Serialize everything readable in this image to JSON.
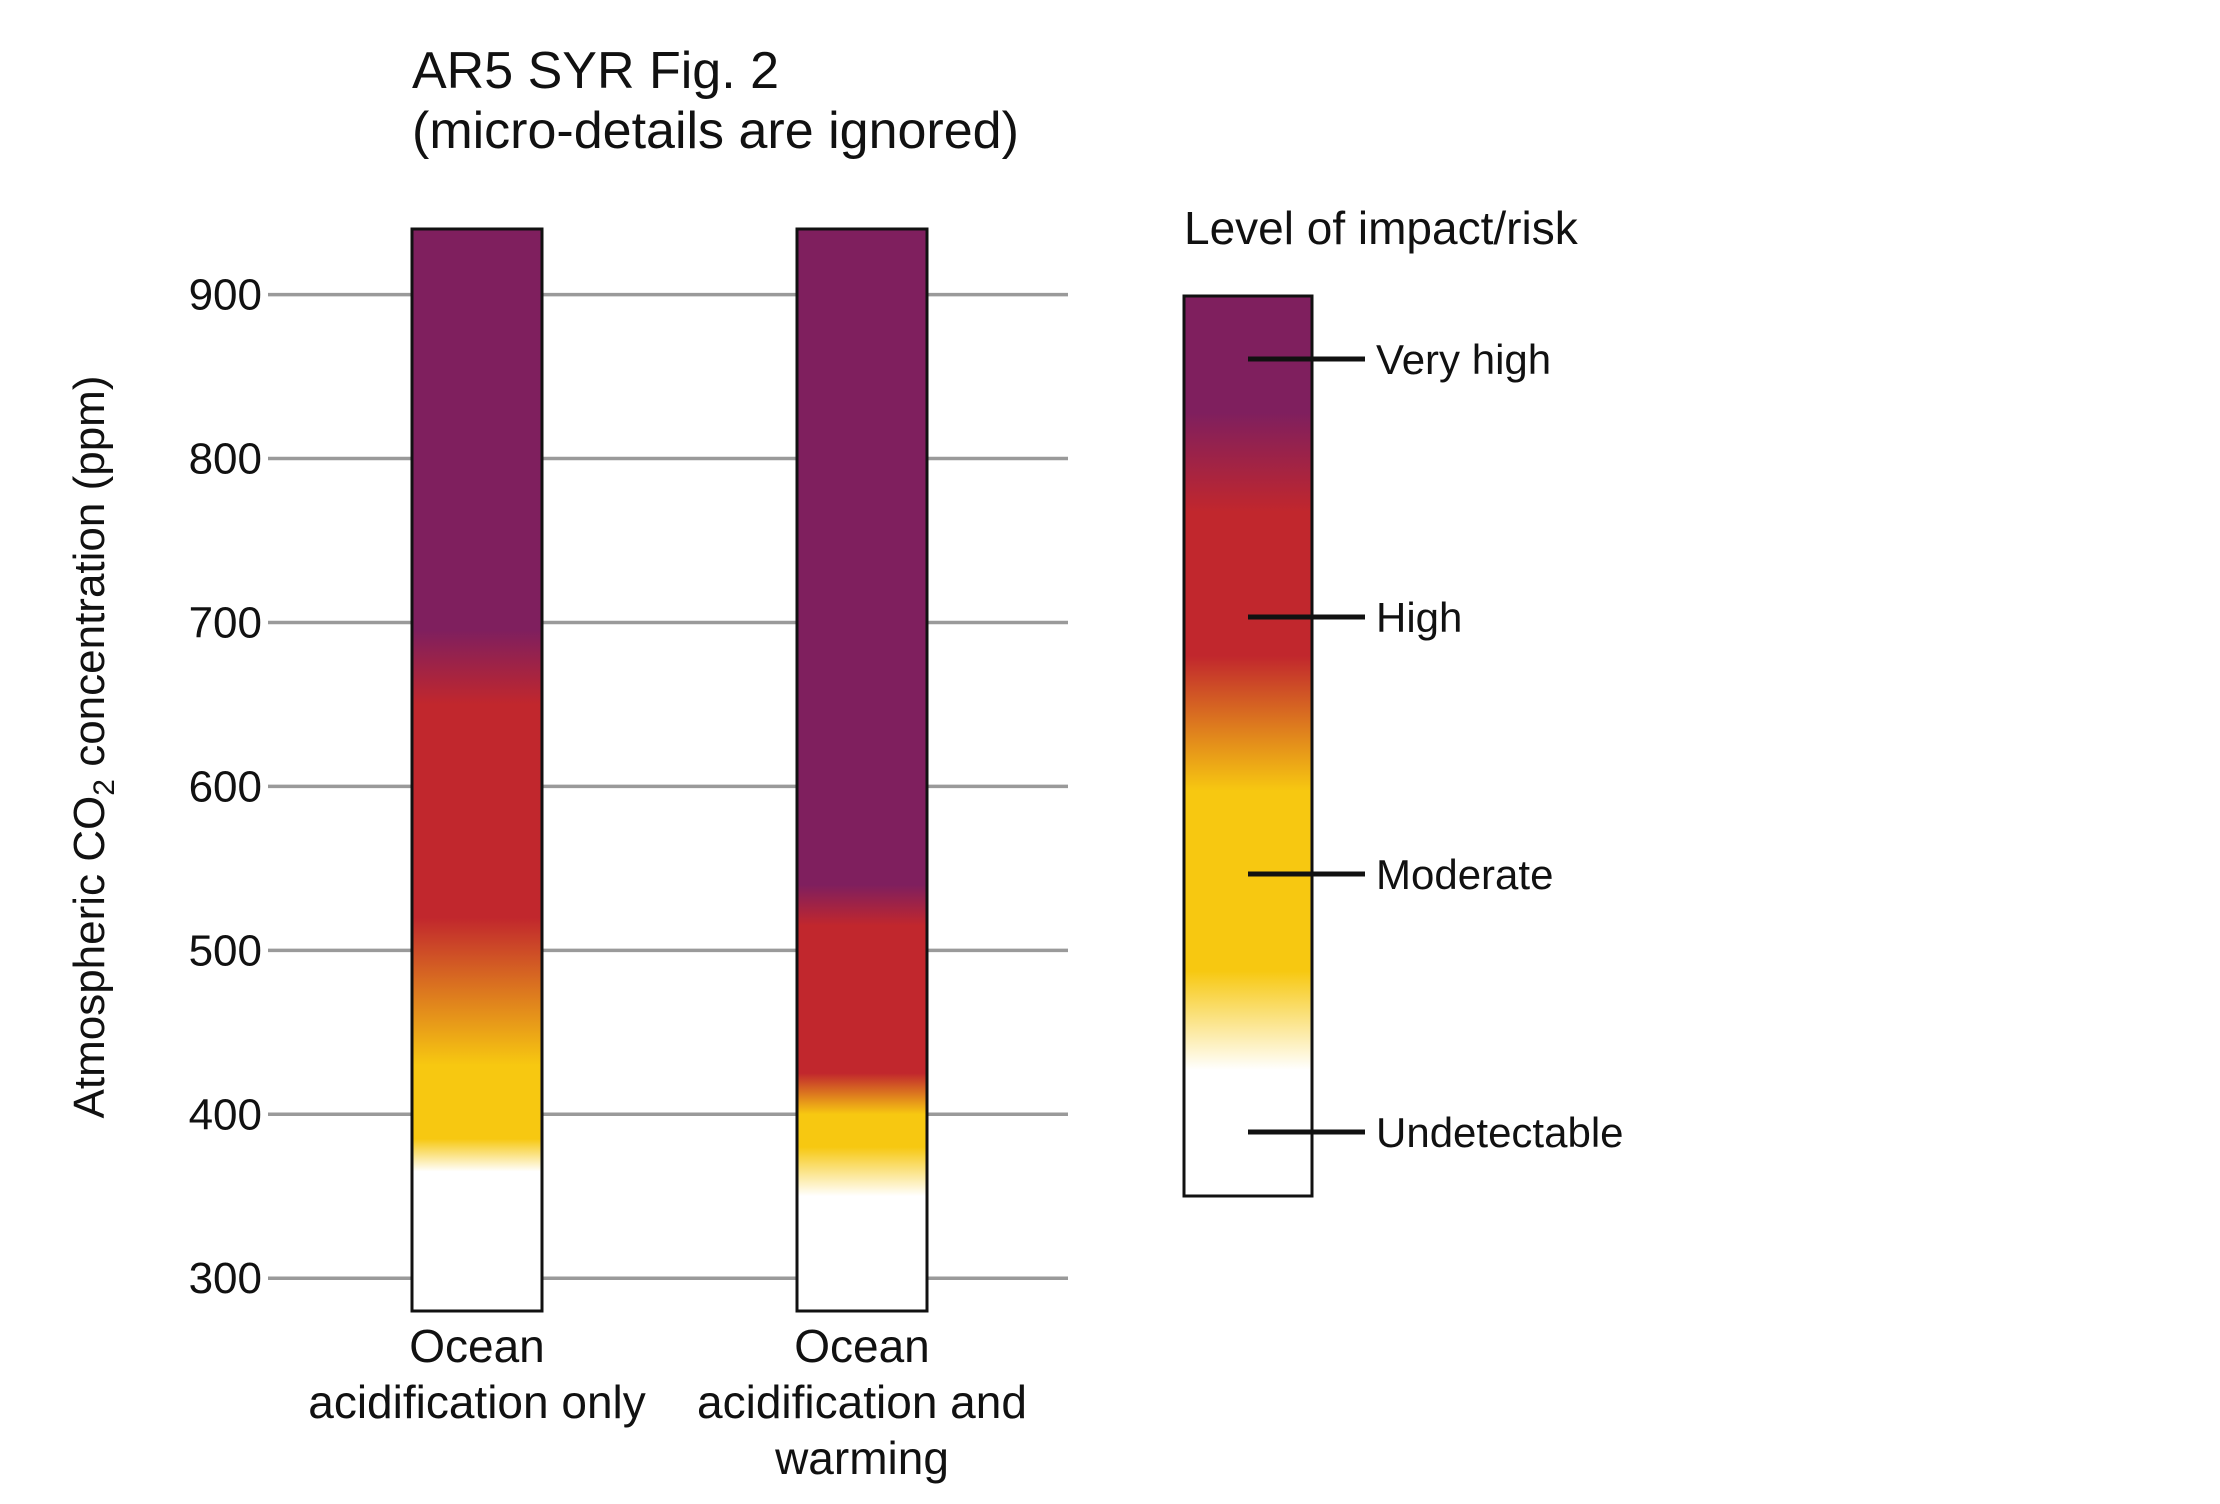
{
  "chart_data": {
    "type": "bar",
    "title": "AR5 SYR Fig. 2",
    "subtitle": "(micro-details are ignored)",
    "ylabel_prefix": "Atmospheric CO",
    "ylabel_subscript": "2",
    "ylabel_suffix": " concentration (ppm)",
    "xlabel": "",
    "ylim": [
      280,
      940
    ],
    "yticks": [
      300,
      400,
      500,
      600,
      700,
      800,
      900
    ],
    "grid": true,
    "categories": [
      {
        "lines": [
          "Ocean",
          "acidification only"
        ]
      },
      {
        "lines": [
          "Ocean",
          "acidification and",
          "warming"
        ]
      }
    ],
    "series": [
      {
        "category_index": 0,
        "range": [
          280,
          940
        ],
        "gradient": [
          {
            "ppm": 365,
            "level": "Undetectable"
          },
          {
            "ppm": 385,
            "level": "Moderate"
          },
          {
            "ppm": 430,
            "level": "Moderate"
          },
          {
            "ppm": 520,
            "level": "High"
          },
          {
            "ppm": 650,
            "level": "High"
          },
          {
            "ppm": 695,
            "level": "Very high"
          }
        ]
      },
      {
        "category_index": 1,
        "range": [
          280,
          940
        ],
        "gradient": [
          {
            "ppm": 350,
            "level": "Undetectable"
          },
          {
            "ppm": 380,
            "level": "Moderate"
          },
          {
            "ppm": 400,
            "level": "Moderate"
          },
          {
            "ppm": 425,
            "level": "High"
          },
          {
            "ppm": 515,
            "level": "High"
          },
          {
            "ppm": 540,
            "level": "Very high"
          }
        ]
      }
    ],
    "legend": {
      "title": "Level of impact/risk",
      "placement": "right",
      "levels": [
        {
          "label": "Very high",
          "color": "#7f1f5e"
        },
        {
          "label": "High",
          "color": "#c1272d"
        },
        {
          "label": "Moderate",
          "color": "#f7c811"
        },
        {
          "label": "Undetectable",
          "color": "#ffffff"
        }
      ]
    }
  }
}
